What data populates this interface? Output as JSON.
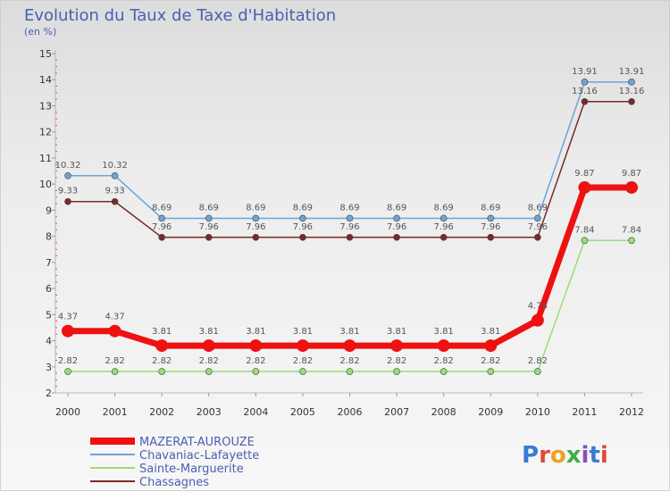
{
  "title": "Evolution du Taux de Taxe d'Habitation",
  "unit": "(en %)",
  "brand": "Proxiti",
  "chart_data": {
    "type": "line",
    "x": [
      2000,
      2001,
      2002,
      2003,
      2004,
      2005,
      2006,
      2007,
      2008,
      2009,
      2010,
      2011,
      2012
    ],
    "ylim": [
      2,
      15
    ],
    "yticks": [
      2,
      3,
      4,
      5,
      6,
      7,
      8,
      9,
      10,
      11,
      12,
      13,
      14,
      15
    ],
    "grid": false,
    "legend": "bottom-left",
    "series": [
      {
        "name": "MAZERAT-AUROUZE",
        "color": "#ee1111",
        "width": 7,
        "marker": 7,
        "values": [
          4.37,
          4.37,
          3.81,
          3.81,
          3.81,
          3.81,
          3.81,
          3.81,
          3.81,
          3.81,
          4.78,
          9.87,
          9.87
        ]
      },
      {
        "name": "Chavaniac-Lafayette",
        "color": "#6fa3d6",
        "width": 1.5,
        "marker": 3.5,
        "values": [
          10.32,
          10.32,
          8.69,
          8.69,
          8.69,
          8.69,
          8.69,
          8.69,
          8.69,
          8.69,
          8.69,
          13.91,
          13.91
        ]
      },
      {
        "name": "Sainte-Marguerite",
        "color": "#99dd77",
        "width": 1.5,
        "marker": 3.5,
        "values": [
          2.82,
          2.82,
          2.82,
          2.82,
          2.82,
          2.82,
          2.82,
          2.82,
          2.82,
          2.82,
          2.82,
          7.84,
          7.84
        ]
      },
      {
        "name": "Chassagnes",
        "color": "#7a2a2a",
        "width": 1.5,
        "marker": 3.5,
        "values": [
          9.33,
          9.33,
          7.96,
          7.96,
          7.96,
          7.96,
          7.96,
          7.96,
          7.96,
          7.96,
          7.96,
          13.16,
          13.16
        ]
      }
    ]
  }
}
